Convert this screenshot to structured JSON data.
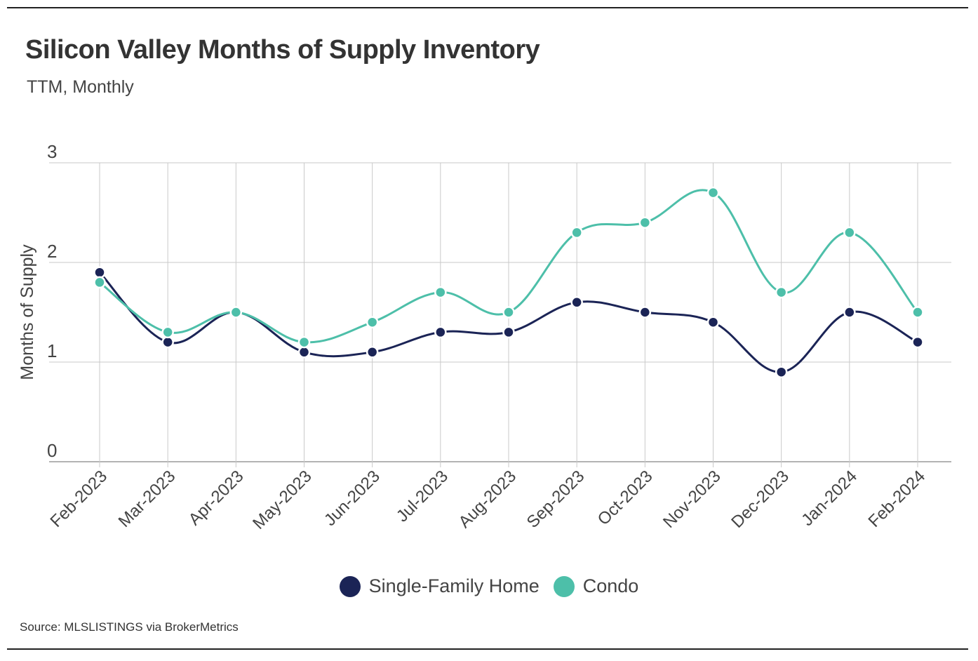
{
  "title": "Silicon Valley Months of Supply Inventory",
  "subtitle": "TTM, Monthly",
  "source": "Source:  MLSLISTINGS via BrokerMetrics",
  "colors": {
    "single_family": "#1b2456",
    "condo": "#4dbfa9",
    "grid": "#c9c9c9",
    "text": "#444444"
  },
  "chart_data": {
    "type": "line",
    "title": "Silicon Valley Months of Supply Inventory",
    "subtitle": "TTM, Monthly",
    "xlabel": "",
    "ylabel": "Months of Supply",
    "ylim": [
      0,
      3
    ],
    "yticks": [
      0,
      1,
      2,
      3
    ],
    "grid": true,
    "legend_position": "bottom-center",
    "categories": [
      "Feb-2023",
      "Mar-2023",
      "Apr-2023",
      "May-2023",
      "Jun-2023",
      "Jul-2023",
      "Aug-2023",
      "Sep-2023",
      "Oct-2023",
      "Nov-2023",
      "Dec-2023",
      "Jan-2024",
      "Feb-2024"
    ],
    "series": [
      {
        "name": "Single-Family Home",
        "color": "#1b2456",
        "values": [
          1.9,
          1.2,
          1.5,
          1.1,
          1.1,
          1.3,
          1.3,
          1.6,
          1.5,
          1.4,
          0.9,
          1.5,
          1.2
        ]
      },
      {
        "name": "Condo",
        "color": "#4dbfa9",
        "values": [
          1.8,
          1.3,
          1.5,
          1.2,
          1.4,
          1.7,
          1.5,
          2.3,
          2.4,
          2.7,
          1.7,
          2.3,
          1.5
        ]
      }
    ]
  }
}
